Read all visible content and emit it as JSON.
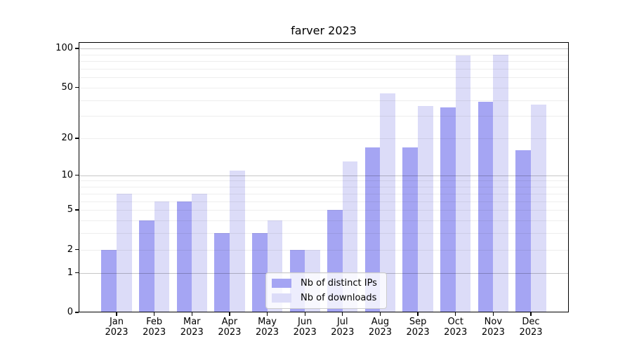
{
  "chart_data": {
    "type": "bar",
    "title": "farver 2023",
    "year_label": "2023",
    "categories": [
      "Jan",
      "Feb",
      "Mar",
      "Apr",
      "May",
      "Jun",
      "Jul",
      "Aug",
      "Sep",
      "Oct",
      "Nov",
      "Dec"
    ],
    "series": [
      {
        "name": "Nb of distinct IPs",
        "color": "#a5a5f3",
        "values": [
          2,
          4,
          6,
          3,
          3,
          2,
          5,
          17,
          17,
          35,
          39,
          16
        ]
      },
      {
        "name": "Nb of downloads",
        "color": "#dcdcf8",
        "values": [
          7,
          6,
          7,
          11,
          4,
          2,
          13,
          45,
          36,
          88,
          90,
          37
        ]
      }
    ],
    "yticks": [
      0,
      1,
      2,
      5,
      10,
      20,
      50,
      100
    ],
    "major_gridlines": [
      1,
      10,
      100
    ],
    "minor_gridlines": [
      2,
      3,
      4,
      5,
      6,
      7,
      8,
      9,
      20,
      30,
      40,
      50,
      60,
      70,
      80,
      90
    ],
    "yscale": "log1p",
    "ylim": [
      0,
      112
    ],
    "xlabel": "",
    "ylabel": "",
    "grid": true,
    "legend_position": "lower center"
  }
}
